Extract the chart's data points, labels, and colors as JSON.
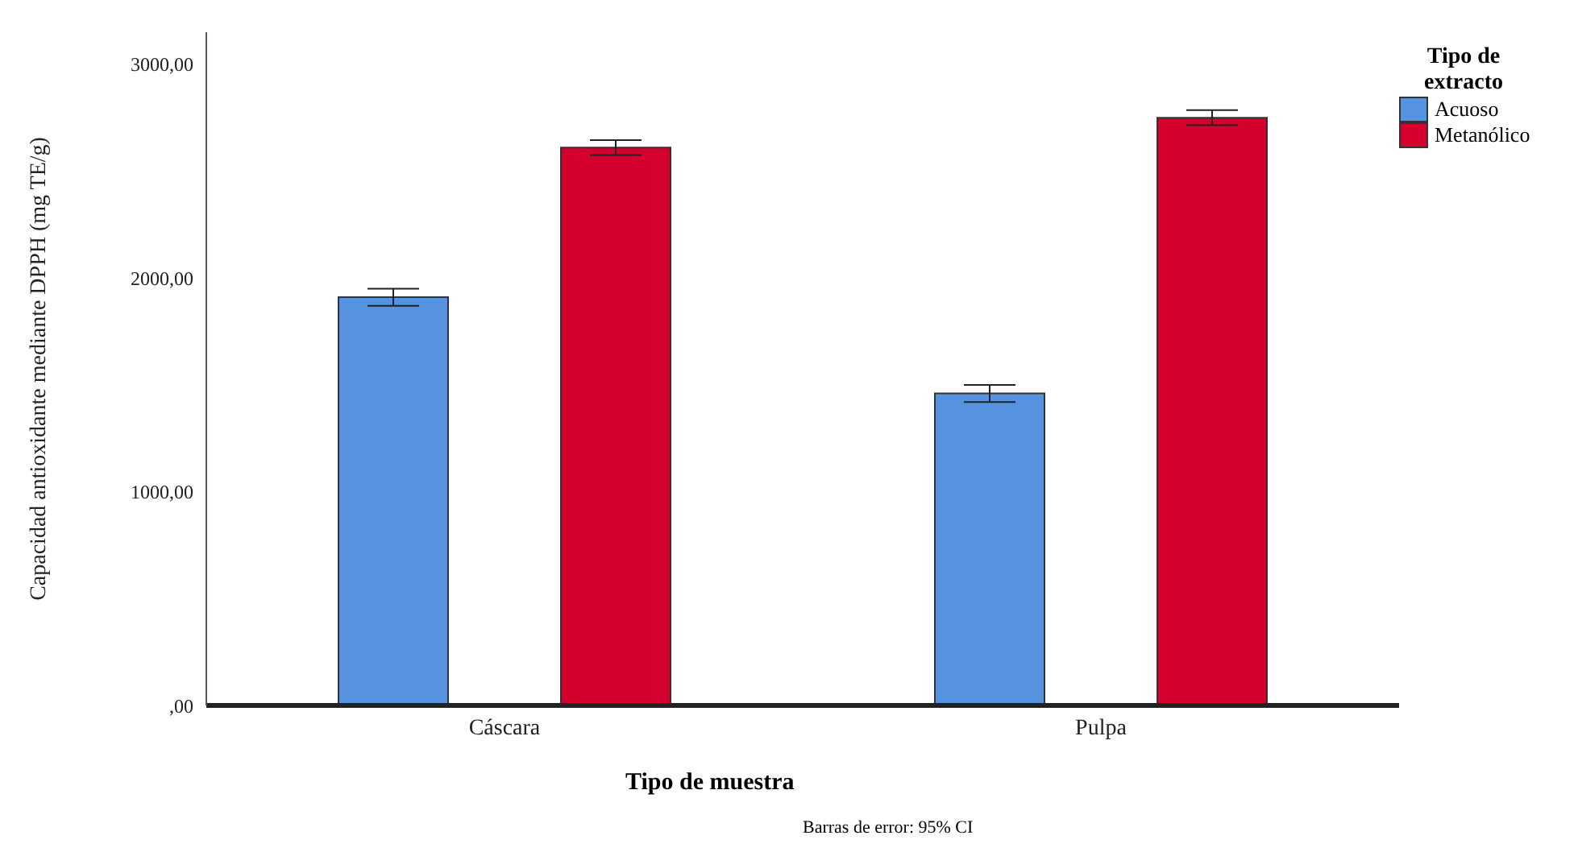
{
  "chart_data": {
    "type": "bar",
    "xlabel": "Tipo de muestra",
    "ylabel": "Capacidad antioxidante mediante DPPH (mg TE/g)",
    "legend_title": "Tipo de extracto",
    "categories": [
      "Cáscara",
      "Pulpa"
    ],
    "series": [
      {
        "name": "Acuoso",
        "color": "#5592e0",
        "values": [
          1910,
          1460
        ],
        "errors": [
          40,
          40
        ]
      },
      {
        "name": "Metanólico",
        "color": "#d6002f",
        "values": [
          2610,
          2750
        ],
        "errors": [
          35,
          35
        ]
      }
    ],
    "ylim": [
      0,
      3150
    ],
    "yticks": [
      {
        "value": 0,
        "label": ",00"
      },
      {
        "value": 1000,
        "label": "1000,00"
      },
      {
        "value": 2000,
        "label": "2000,00"
      },
      {
        "value": 3000,
        "label": "3000,00"
      }
    ],
    "grid": false,
    "legend": "top right",
    "annotations": [
      "Barras de error: 95% CI"
    ]
  }
}
